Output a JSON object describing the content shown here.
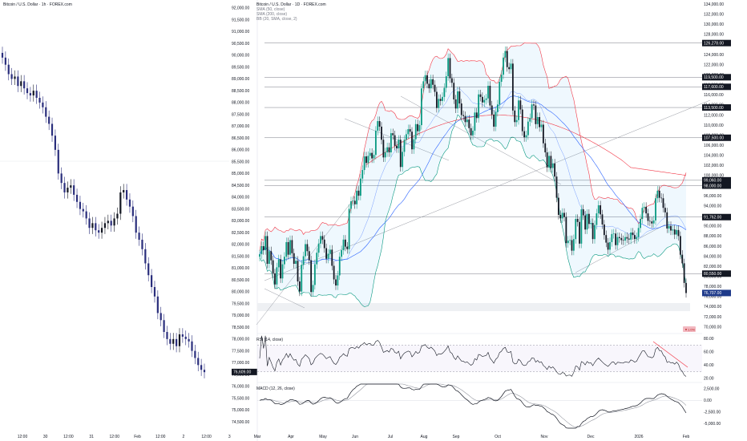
{
  "chart_data": [
    {
      "type": "candlestick",
      "title": "Bitcoin / U.S. Dollar · 1h · FOREX.com",
      "x_ticks": [
        "12:00",
        "30",
        "12:00",
        "31",
        "12:00",
        "Feb",
        "12:00",
        "2",
        "12:00",
        "3"
      ],
      "y_ticks": [
        "92,000.00",
        "91,500.00",
        "91,000.00",
        "90,500.00",
        "90,000.00",
        "89,500.00",
        "89,000.00",
        "88,500.00",
        "88,000.00",
        "87,500.00",
        "87,000.00",
        "86,500.00",
        "86,000.00",
        "85,500.00",
        "85,000.00",
        "84,500.00",
        "84,000.00",
        "83,500.00",
        "83,000.00",
        "82,500.00",
        "82,000.00",
        "81,500.00",
        "81,000.00",
        "80,500.00",
        "80,000.00",
        "79,500.00",
        "79,000.00",
        "78,500.00",
        "78,000.00",
        "77,500.00",
        "77,000.00",
        "76,500.00",
        "76,000.00",
        "75,500.00",
        "75,000.00",
        "74,500.00"
      ],
      "ylim": [
        74300,
        92200
      ],
      "last_price_label": "76,609.00",
      "last_price": 76609,
      "series": [
        {
          "name": "BTCUSD 1h",
          "close": [
            89900,
            89600,
            89200,
            89000,
            89100,
            88700,
            88900,
            88600,
            88400,
            88300,
            88500,
            88200,
            88000,
            87800,
            87400,
            87100,
            86600,
            86000,
            85000,
            84600,
            84200,
            84400,
            84500,
            84100,
            83800,
            83500,
            83400,
            83100,
            82700,
            82900,
            82600,
            82500,
            82700,
            82900,
            83000,
            82800,
            83100,
            83300,
            84200,
            84300,
            83900,
            83600,
            83200,
            82500,
            82200,
            81800,
            81200,
            80700,
            80200,
            79800,
            79100,
            78800,
            78300,
            78000,
            77800,
            78000,
            77700,
            78200,
            78100,
            78000,
            77900,
            77500,
            77200,
            76900,
            76700,
            76600
          ]
        }
      ]
    },
    {
      "type": "candlestick",
      "title": "Bitcoin / U.S. Dollar · 1D · FOREX.com",
      "legend": [
        "SMA (50, close)",
        "SMA (200, close)",
        "BB (20, SMA, close, 2)"
      ],
      "x_ticks": [
        "Mar",
        "Apr",
        "May",
        "Jun",
        "Jul",
        "Aug",
        "Sep",
        "Oct",
        "Nov",
        "Dec",
        "2026",
        "Feb"
      ],
      "y_ticks": [
        "134,000.00",
        "132,000.00",
        "130,000.00",
        "128,000.00",
        "126,000.00",
        "124,000.00",
        "122,000.00",
        "120,000.00",
        "118,000.00",
        "116,000.00",
        "114,000.00",
        "112,000.00",
        "110,000.00",
        "108,000.00",
        "106,000.00",
        "104,000.00",
        "102,000.00",
        "100,000.00",
        "98,000.00",
        "96,000.00",
        "94,000.00",
        "92,000.00",
        "90,000.00",
        "88,000.00",
        "86,000.00",
        "84,000.00",
        "82,000.00",
        "80,000.00",
        "78,000.00",
        "76,000.00",
        "74,000.00",
        "72,000.00",
        "70,000.00"
      ],
      "ylim": [
        69300,
        134500
      ],
      "level_labels": [
        {
          "text": "126,278.00",
          "value": 126278
        },
        {
          "text": "119,500.00",
          "value": 119500
        },
        {
          "text": "117,600.00",
          "value": 117600
        },
        {
          "text": "113,500.00",
          "value": 113500
        },
        {
          "text": "107,500.00",
          "value": 107500
        },
        {
          "text": "99,060.00",
          "value": 99060
        },
        {
          "text": "98,000.00",
          "value": 98000
        },
        {
          "text": "91,762.00",
          "value": 91762
        },
        {
          "text": "80,550.00",
          "value": 80550
        }
      ],
      "last_price_label": "76,707.00",
      "last_price": 76707,
      "blue_label": "▼1.0%",
      "closes": [
        84400,
        86000,
        85200,
        88000,
        82500,
        85000,
        83200,
        80600,
        78400,
        81800,
        83400,
        79600,
        82400,
        83900,
        86800,
        84300,
        87200,
        84600,
        82500,
        83100,
        79000,
        77000,
        82300,
        84000,
        86400,
        85000,
        83200,
        76900,
        78300,
        82400,
        84700,
        86500,
        88000,
        87300,
        85600,
        83500,
        84500,
        85300,
        82100,
        79400,
        78200,
        80200,
        83900,
        85200,
        87300,
        85900,
        85400,
        93400,
        94900,
        95000,
        94300,
        97000,
        96000,
        99400,
        101100,
        103800,
        102500,
        103900,
        104500,
        103400,
        104100,
        108900,
        110800,
        109700,
        107100,
        103600,
        104600,
        105600,
        104600,
        108400,
        108000,
        105900,
        105400,
        107100,
        101700,
        104700,
        107100,
        108200,
        109200,
        108700,
        105200,
        107200,
        110200,
        108800,
        110000,
        117300,
        118700,
        119900,
        118200,
        117300,
        119100,
        118000,
        116600,
        113400,
        115200,
        114800,
        115600,
        117400,
        119700,
        123300,
        119300,
        118400,
        115100,
        113300,
        116700,
        114300,
        112000,
        111800,
        110600,
        111100,
        109400,
        108000,
        108900,
        112500,
        111400,
        116100,
        115600,
        114500,
        115000,
        115300,
        117800,
        113900,
        112100,
        109700,
        112600,
        114100,
        118600,
        120000,
        123400,
        124700,
        121500,
        121100,
        122200,
        112900,
        110600,
        111000,
        114900,
        113100,
        108800,
        107600,
        108000,
        110700,
        111400,
        114100,
        113900,
        110200,
        111600,
        109600,
        110100,
        106400,
        104600,
        101600,
        103900,
        101500,
        102400,
        99800,
        95600,
        92200,
        91500,
        92600,
        91800,
        86600,
        87100,
        87200,
        85100,
        87400,
        91400,
        90800,
        86500,
        93300,
        92100,
        89300,
        92400,
        90400,
        90600,
        87400,
        90200,
        92500,
        94100,
        92300,
        90300,
        88200,
        86700,
        85300,
        86800,
        88400,
        88500,
        86200,
        87800,
        87600,
        87200,
        87100,
        87800,
        87500,
        87300,
        88700,
        88200,
        87400,
        87800,
        89600,
        91400,
        93600,
        93800,
        92500,
        91000,
        90900,
        90500,
        91100,
        95500,
        97000,
        95600,
        95500,
        93600,
        92700,
        89500,
        90000,
        89100,
        89300,
        88300,
        89200,
        88000,
        84300,
        82600,
        78700,
        76700
      ],
      "levels": {
        "sma50_end": 88500,
        "sma200_end": 103000
      }
    },
    {
      "type": "line",
      "title": "RSI (14, close)",
      "y_ticks": [
        "80.00",
        "60.00",
        "40.00",
        "20.00"
      ],
      "ylim": [
        15,
        85
      ],
      "reference_lines": [
        70,
        30
      ]
    },
    {
      "type": "line",
      "title": "MACD (12, 26, close)",
      "y_ticks": [
        "2,500.00",
        "0.00",
        "-2,500.00",
        "-5,000.00"
      ],
      "ylim": [
        -6000,
        3500
      ]
    }
  ]
}
